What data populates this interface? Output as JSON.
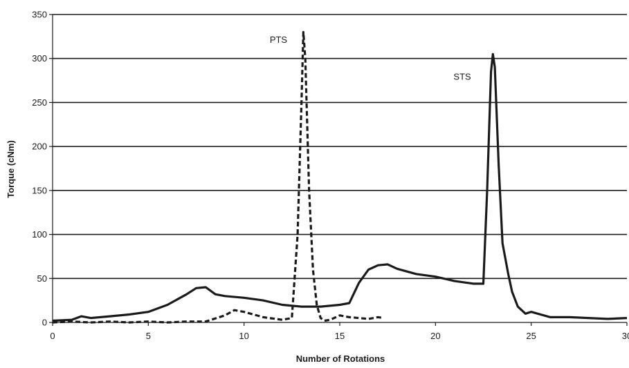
{
  "chart_data": {
    "type": "line",
    "title": "",
    "xlabel": "Number of Rotations",
    "ylabel": "Torque (cNm)",
    "xlim": [
      0,
      30
    ],
    "ylim": [
      0,
      350
    ],
    "xticks": [
      0,
      5,
      10,
      15,
      20,
      25,
      30
    ],
    "yticks": [
      0,
      50,
      100,
      150,
      200,
      250,
      300,
      350
    ],
    "x_tick_labels": [
      "0",
      "5",
      "10",
      "15",
      "20",
      "25",
      "30"
    ],
    "y_tick_labels": [
      "0",
      "50",
      "100",
      "150",
      "200",
      "250",
      "300",
      "350"
    ],
    "grid": "horizontal",
    "legend": "none",
    "series": [
      {
        "name": "PTS",
        "style": "dashed",
        "label_anchor": [
          11.8,
          318
        ],
        "x": [
          0,
          1,
          2,
          3,
          4,
          5,
          6,
          7,
          8,
          9,
          9.5,
          10,
          11,
          12,
          12.5,
          12.8,
          13.0,
          13.1,
          13.2,
          13.4,
          13.6,
          13.8,
          14.0,
          14.2,
          14.5,
          15,
          15.5,
          16,
          16.5,
          17,
          17.3
        ],
        "y": [
          0,
          1,
          0,
          1,
          0,
          1,
          0,
          1,
          1,
          8,
          14,
          12,
          6,
          3,
          5,
          100,
          250,
          330,
          300,
          150,
          60,
          20,
          5,
          2,
          3,
          8,
          6,
          5,
          4,
          6,
          5
        ]
      },
      {
        "name": "STS",
        "style": "solid",
        "label_anchor": [
          21.4,
          276
        ],
        "x": [
          0,
          1,
          1.5,
          2,
          3,
          4,
          5,
          6,
          7,
          7.5,
          8,
          8.5,
          9,
          10,
          11,
          12,
          13,
          14,
          15,
          15.5,
          16,
          16.5,
          17,
          17.5,
          18,
          19,
          20,
          21,
          22,
          22.5,
          22.7,
          22.9,
          23.0,
          23.1,
          23.3,
          23.5,
          23.8,
          24.0,
          24.3,
          24.7,
          25,
          26,
          27,
          28,
          29,
          30
        ],
        "y": [
          2,
          3,
          7,
          5,
          7,
          9,
          12,
          20,
          32,
          39,
          40,
          32,
          30,
          28,
          25,
          20,
          18,
          18,
          20,
          22,
          45,
          60,
          65,
          66,
          61,
          55,
          52,
          47,
          44,
          44,
          150,
          285,
          305,
          290,
          180,
          90,
          55,
          35,
          18,
          10,
          12,
          6,
          6,
          5,
          4,
          5
        ]
      }
    ]
  }
}
